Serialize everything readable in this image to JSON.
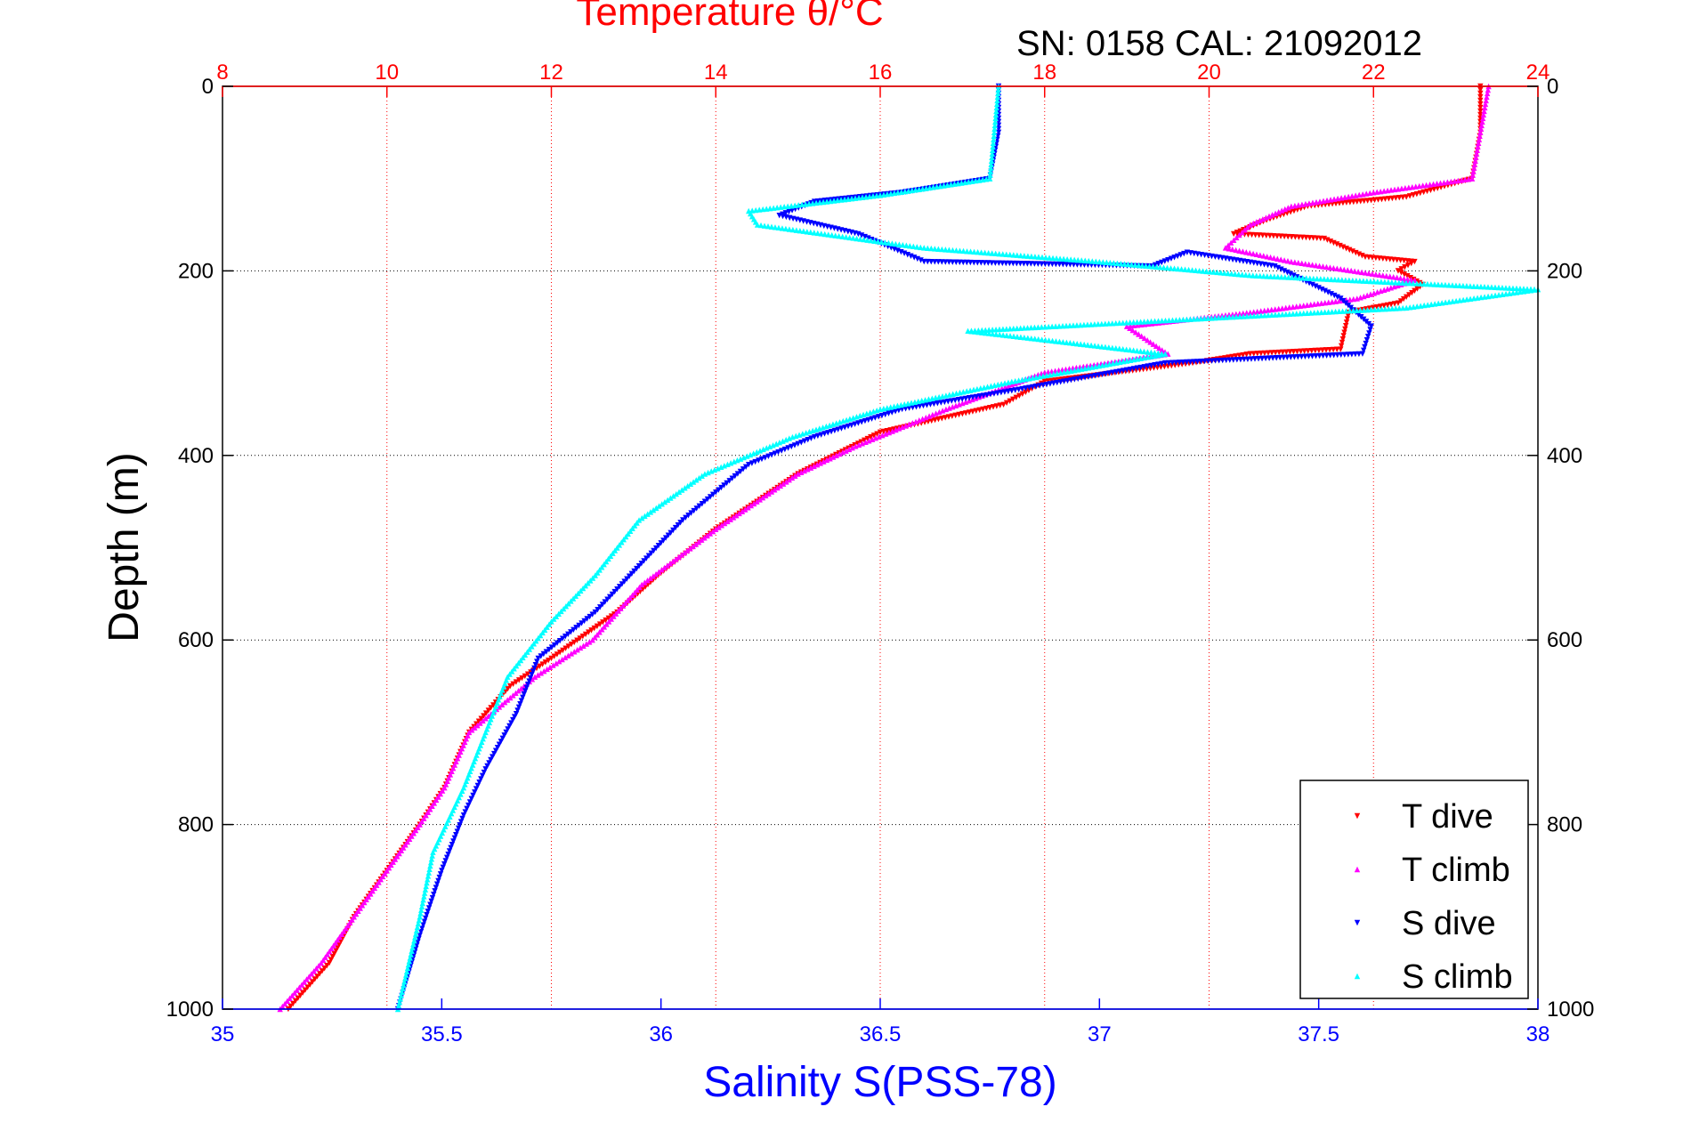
{
  "colors": {
    "t_dive": "#ff0000",
    "t_climb": "#ff00ff",
    "s_dive": "#0000ff",
    "s_climb": "#00ffff",
    "temperature_axis": "#ff0000",
    "salinity_axis": "#0000ff"
  },
  "chart_data": {
    "type": "scatter",
    "title": "Temperature θ/°C",
    "subtitle": "SN: 0158  CAL: 21092012",
    "xlabel": "Salinity S(PSS-78)",
    "x2label": "Temperature θ/°C",
    "ylabel": "Depth (m)",
    "xlim": [
      35,
      38
    ],
    "x2lim": [
      8,
      24
    ],
    "ylim": [
      0,
      1000
    ],
    "y_reversed": true,
    "grid": "dotted vertical at temperature ticks, horizontal at depth ticks",
    "legend_position": "bottom-right",
    "x_ticks": [
      "35",
      "35.5",
      "36",
      "36.5",
      "37",
      "37.5",
      "38"
    ],
    "x2_ticks": [
      "8",
      "10",
      "12",
      "14",
      "16",
      "18",
      "20",
      "22",
      "24"
    ],
    "y_ticks": [
      "0",
      "200",
      "400",
      "600",
      "800",
      "1000"
    ],
    "series": [
      {
        "name": "T dive",
        "marker": "triangle-down",
        "axis": "temperature",
        "points": [
          [
            23.3,
            0
          ],
          [
            23.3,
            50
          ],
          [
            23.2,
            100
          ],
          [
            22.4,
            120
          ],
          [
            21.2,
            130
          ],
          [
            20.7,
            145
          ],
          [
            20.3,
            160
          ],
          [
            21.4,
            165
          ],
          [
            21.9,
            185
          ],
          [
            22.5,
            190
          ],
          [
            22.3,
            200
          ],
          [
            22.6,
            215
          ],
          [
            22.3,
            235
          ],
          [
            21.7,
            245
          ],
          [
            21.6,
            285
          ],
          [
            20.5,
            290
          ],
          [
            19.8,
            300
          ],
          [
            18.0,
            320
          ],
          [
            17.5,
            345
          ],
          [
            16.0,
            375
          ],
          [
            15.0,
            420
          ],
          [
            14.0,
            480
          ],
          [
            13.3,
            530
          ],
          [
            12.8,
            570
          ],
          [
            12.0,
            620
          ],
          [
            11.5,
            650
          ],
          [
            11.0,
            700
          ],
          [
            10.7,
            760
          ],
          [
            10.4,
            800
          ],
          [
            10.0,
            850
          ],
          [
            9.6,
            900
          ],
          [
            9.3,
            950
          ],
          [
            8.8,
            1000
          ]
        ]
      },
      {
        "name": "T climb",
        "marker": "triangle-up",
        "axis": "temperature",
        "points": [
          [
            23.4,
            0
          ],
          [
            23.3,
            50
          ],
          [
            23.2,
            100
          ],
          [
            22.0,
            115
          ],
          [
            21.0,
            130
          ],
          [
            20.5,
            150
          ],
          [
            20.2,
            175
          ],
          [
            21.0,
            190
          ],
          [
            22.5,
            210
          ],
          [
            21.8,
            230
          ],
          [
            20.5,
            245
          ],
          [
            19.0,
            260
          ],
          [
            19.5,
            290
          ],
          [
            18.0,
            310
          ],
          [
            16.8,
            350
          ],
          [
            15.7,
            390
          ],
          [
            15.0,
            420
          ],
          [
            14.0,
            480
          ],
          [
            13.1,
            540
          ],
          [
            12.5,
            600
          ],
          [
            11.8,
            640
          ],
          [
            11.0,
            700
          ],
          [
            10.7,
            760
          ],
          [
            10.4,
            800
          ],
          [
            10.0,
            850
          ],
          [
            9.6,
            900
          ],
          [
            9.2,
            950
          ],
          [
            8.7,
            1000
          ]
        ]
      },
      {
        "name": "S dive",
        "marker": "triangle-down",
        "axis": "salinity",
        "points": [
          [
            36.77,
            0
          ],
          [
            36.77,
            50
          ],
          [
            36.75,
            100
          ],
          [
            36.55,
            115
          ],
          [
            36.35,
            125
          ],
          [
            36.27,
            140
          ],
          [
            36.45,
            160
          ],
          [
            36.6,
            190
          ],
          [
            37.12,
            195
          ],
          [
            37.2,
            180
          ],
          [
            37.4,
            195
          ],
          [
            37.55,
            230
          ],
          [
            37.62,
            260
          ],
          [
            37.6,
            290
          ],
          [
            37.15,
            300
          ],
          [
            36.8,
            330
          ],
          [
            36.55,
            350
          ],
          [
            36.35,
            380
          ],
          [
            36.2,
            410
          ],
          [
            36.05,
            470
          ],
          [
            35.95,
            520
          ],
          [
            35.85,
            570
          ],
          [
            35.72,
            620
          ],
          [
            35.67,
            680
          ],
          [
            35.6,
            740
          ],
          [
            35.55,
            790
          ],
          [
            35.5,
            850
          ],
          [
            35.45,
            920
          ],
          [
            35.4,
            1000
          ]
        ]
      },
      {
        "name": "S climb",
        "marker": "triangle-up",
        "axis": "salinity",
        "points": [
          [
            36.77,
            0
          ],
          [
            36.76,
            50
          ],
          [
            36.75,
            100
          ],
          [
            36.5,
            118
          ],
          [
            36.2,
            135
          ],
          [
            36.22,
            150
          ],
          [
            36.6,
            175
          ],
          [
            37.0,
            190
          ],
          [
            37.35,
            205
          ],
          [
            38.0,
            220
          ],
          [
            37.7,
            240
          ],
          [
            36.9,
            260
          ],
          [
            36.7,
            265
          ],
          [
            37.15,
            290
          ],
          [
            36.8,
            320
          ],
          [
            36.5,
            350
          ],
          [
            36.3,
            380
          ],
          [
            36.1,
            420
          ],
          [
            35.95,
            470
          ],
          [
            35.85,
            530
          ],
          [
            35.75,
            580
          ],
          [
            35.65,
            640
          ],
          [
            35.6,
            700
          ],
          [
            35.55,
            760
          ],
          [
            35.48,
            830
          ],
          [
            35.45,
            900
          ],
          [
            35.4,
            1000
          ]
        ]
      }
    ]
  }
}
